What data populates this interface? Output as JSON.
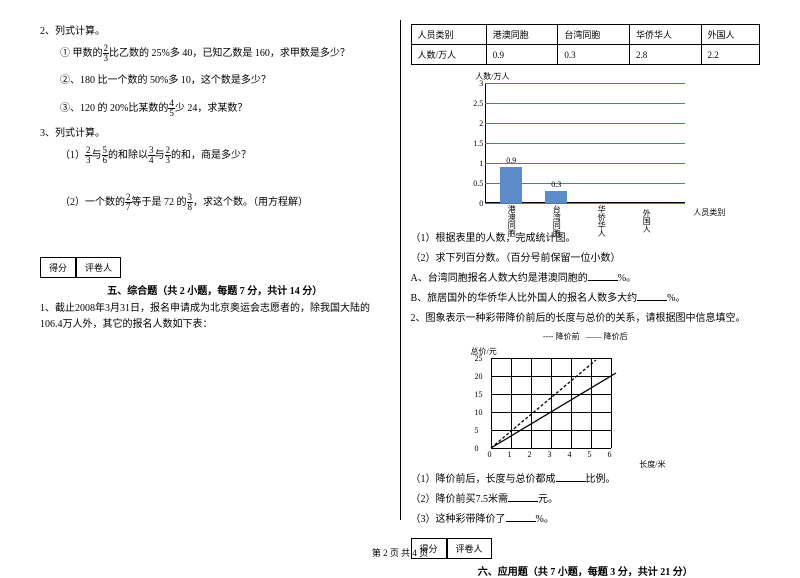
{
  "left": {
    "q2_title": "2、列式计算。",
    "q2_1a": "① 甲数的",
    "q2_1_frac": {
      "n": "2",
      "d": "3"
    },
    "q2_1b": "比乙数的 25%多 40，已知乙数是 160，求甲数是多少？",
    "q2_2": "②、180 比一个数的 50%多 10，这个数是多少？",
    "q2_3a": "③、120 的 20%比某数的",
    "q2_3_frac": {
      "n": "4",
      "d": "5"
    },
    "q2_3b": "少 24，求某数？",
    "q3_title": "3、列式计算。",
    "q3_1a": "（1）",
    "q3_1_f1": {
      "n": "2",
      "d": "3"
    },
    "q3_1b": "与",
    "q3_1_f2": {
      "n": "5",
      "d": "6"
    },
    "q3_1c": "的和除以",
    "q3_1_f3": {
      "n": "3",
      "d": "4"
    },
    "q3_1d": "与",
    "q3_1_f4": {
      "n": "2",
      "d": "3"
    },
    "q3_1e": "的和，商是多少？",
    "q3_2a": "（2）一个数的",
    "q3_2_f1": {
      "n": "2",
      "d": "7"
    },
    "q3_2b": "等于是 72 的",
    "q3_2_f2": {
      "n": "3",
      "d": "8"
    },
    "q3_2c": "，求这个数。（用方程解）",
    "score1": "得分",
    "score2": "评卷人",
    "section5": "五、综合题（共 2 小题，每题 7 分，共计 14 分）",
    "p1": "1、截止2008年3月31日，报名申请成为北京奥运会志愿者的，除我国大陆的106.4万人外，其它的报名人数如下表：",
    "footer": "第 2 页 共 4 页"
  },
  "right": {
    "table": {
      "h1": "人员类别",
      "h2": "港澳同胞",
      "h3": "台湾同胞",
      "h4": "华侨华人",
      "h5": "外国人",
      "r1": "人数/万人",
      "v1": "0.9",
      "v2": "0.3",
      "v3": "2.8",
      "v4": "2.2"
    },
    "chart1": {
      "ytitle": "人数/万人",
      "xtitle": "人员类别",
      "yticks": [
        "0",
        "0.5",
        "1",
        "1.5",
        "2",
        "2.5",
        "3"
      ],
      "bars": [
        {
          "label": "港澳同胞",
          "val": "0.9",
          "h": 0.9
        },
        {
          "label": "台湾同胞",
          "val": "0.3",
          "h": 0.3
        }
      ],
      "xlabels": [
        "港澳同胞",
        "台湾同胞",
        "华侨华人",
        "外国人"
      ],
      "color": "#5b8bc9",
      "grid_color": "#4a7ab8"
    },
    "q1_1": "（1）根据表里的人数，完成统计图。",
    "q1_2": "（2）求下列百分数。（百分号前保留一位小数）",
    "q1_2a": "A、台湾同胞报名人数大约是港澳同胞的",
    "q1_2a_end": "%。",
    "q1_2b": "B、旅居国外的华侨华人比外国人的报名人数多大约",
    "q1_2b_end": "%。",
    "q2": "2、图象表示一种彩带降价前后的长度与总价的关系，请根据图中信息填空。",
    "legend1": "---- 降价前",
    "legend2": "—— 降价后",
    "chart2": {
      "ytitle": "总价/元",
      "xtitle": "长度/米",
      "xticks": [
        "0",
        "1",
        "2",
        "3",
        "4",
        "5",
        "6"
      ],
      "yticks": [
        "0",
        "5",
        "10",
        "15",
        "20",
        "25"
      ]
    },
    "q2_1": "（1）降价前后，长度与总价都成",
    "q2_1_end": "比例。",
    "q2_2": "（2）降价前买7.5米需",
    "q2_2_end": "元。",
    "q2_3": "（3）这种彩带降价了",
    "q2_3_end": "%。",
    "score1": "得分",
    "score2": "评卷人",
    "section6": "六、应用题（共 7 小题，每题 3 分，共计 21 分）"
  }
}
